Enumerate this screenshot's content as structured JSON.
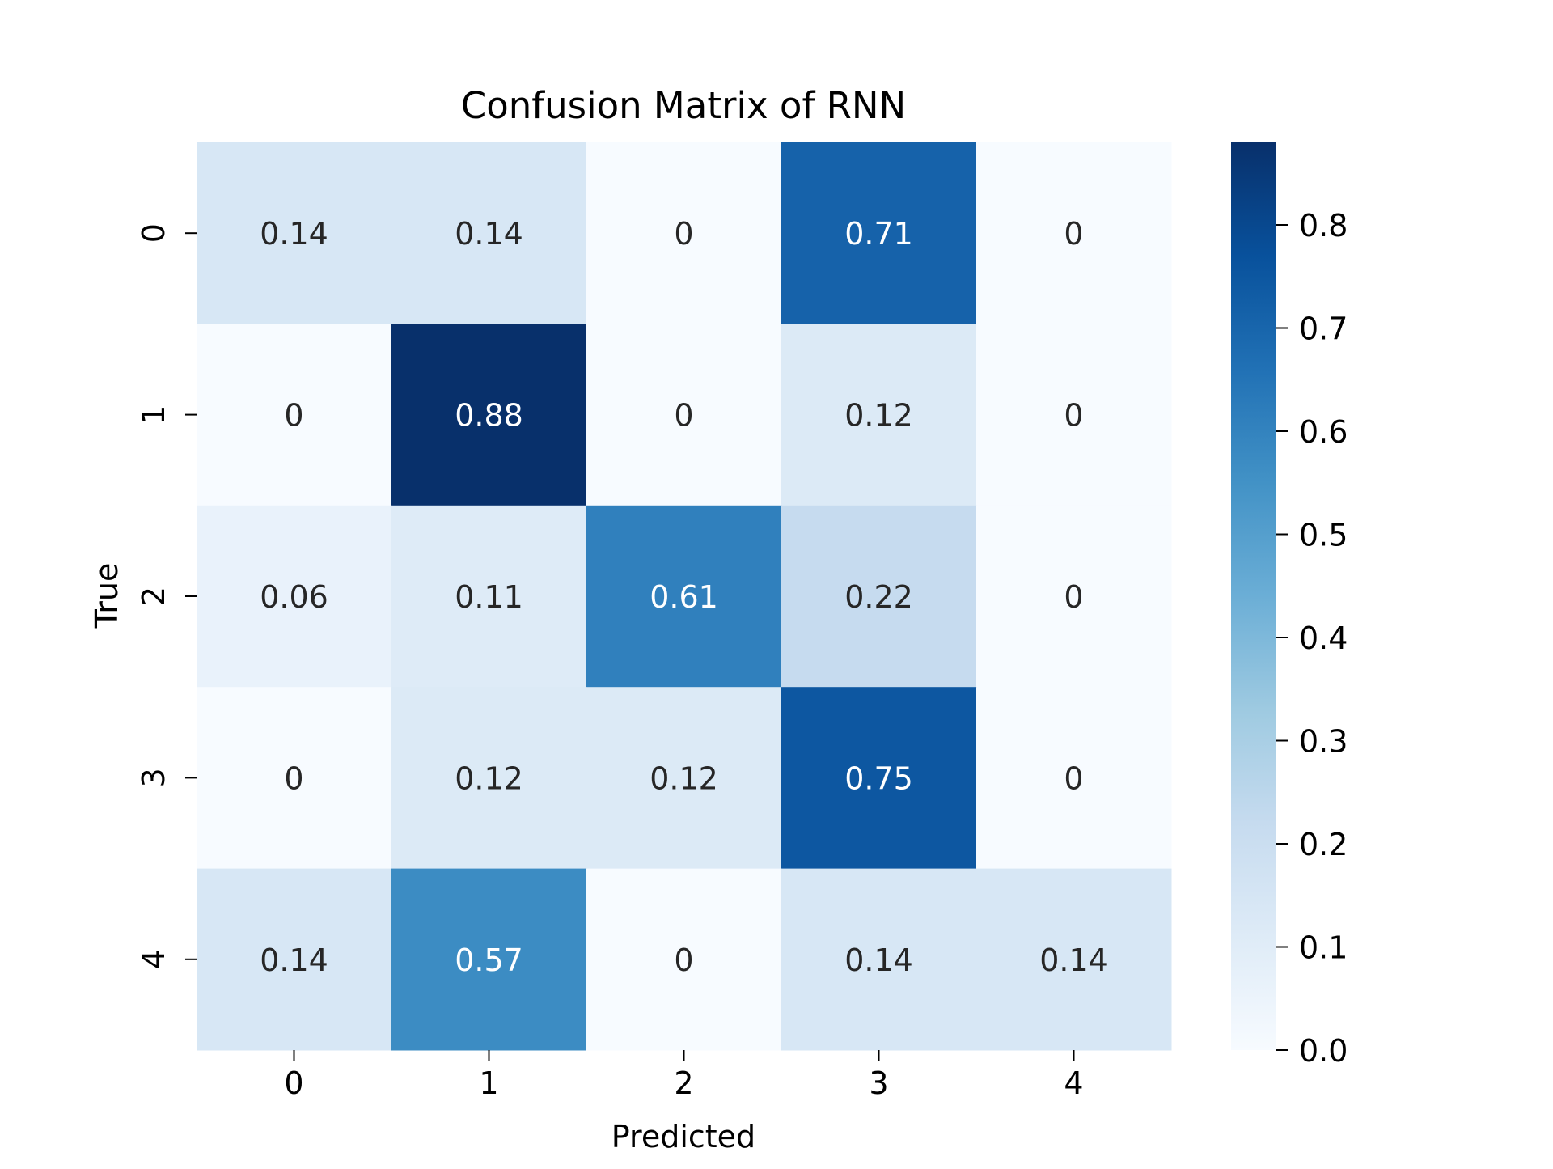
{
  "chart_data": {
    "type": "heatmap",
    "title": "Confusion Matrix of RNN",
    "xlabel": "Predicted",
    "ylabel": "True",
    "x_categories": [
      "0",
      "1",
      "2",
      "3",
      "4"
    ],
    "y_categories": [
      "0",
      "1",
      "2",
      "3",
      "4"
    ],
    "values": [
      [
        0.14,
        0.14,
        0,
        0.71,
        0
      ],
      [
        0,
        0.88,
        0,
        0.12,
        0
      ],
      [
        0.06,
        0.11,
        0.61,
        0.22,
        0
      ],
      [
        0,
        0.12,
        0.12,
        0.75,
        0
      ],
      [
        0.14,
        0.57,
        0,
        0.14,
        0.14
      ]
    ],
    "cell_labels": [
      [
        "0.14",
        "0.14",
        "0",
        "0.71",
        "0"
      ],
      [
        "0",
        "0.88",
        "0",
        "0.12",
        "0"
      ],
      [
        "0.06",
        "0.11",
        "0.61",
        "0.22",
        "0"
      ],
      [
        "0",
        "0.12",
        "0.12",
        "0.75",
        "0"
      ],
      [
        "0.14",
        "0.57",
        "0",
        "0.14",
        "0.14"
      ]
    ],
    "colormap": "Blues",
    "colormap_stops": [
      "#f7fbff",
      "#deebf7",
      "#c6dbef",
      "#9ecae1",
      "#6baed6",
      "#4292c6",
      "#2171b5",
      "#08519c",
      "#08306b"
    ],
    "colorbar": {
      "range": [
        0,
        0.88
      ],
      "ticks": [
        "0.0",
        "0.1",
        "0.2",
        "0.3",
        "0.4",
        "0.5",
        "0.6",
        "0.7",
        "0.8"
      ]
    },
    "annotation_colors": {
      "dark": "#262626",
      "light": "#ffffff"
    }
  }
}
